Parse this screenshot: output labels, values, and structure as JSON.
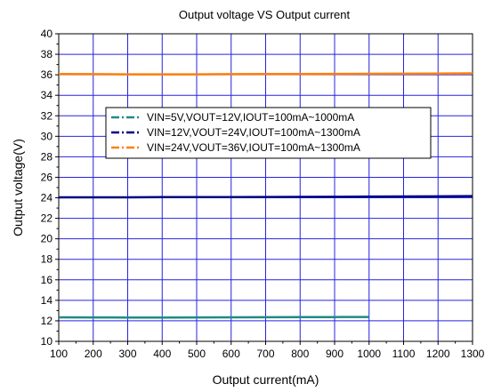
{
  "chart_data": {
    "type": "line",
    "title": "Output voltage VS Output current",
    "xlabel": "Output current(mA)",
    "ylabel": "Output voltage(V)",
    "xlim": [
      100,
      1300
    ],
    "ylim": [
      10,
      40
    ],
    "xticks": [
      100,
      200,
      300,
      400,
      500,
      600,
      700,
      800,
      900,
      1000,
      1100,
      1200,
      1300
    ],
    "yticks": [
      10,
      12,
      14,
      16,
      18,
      20,
      22,
      24,
      26,
      28,
      30,
      32,
      34,
      36,
      38,
      40
    ],
    "grid": true,
    "legend_position": "upper-middle",
    "series": [
      {
        "name": "VIN=5V,VOUT=12V,IOUT=100mA~1000mA",
        "color": "#1f8a8a",
        "dash": "dash-dot",
        "x": [
          100,
          200,
          300,
          400,
          500,
          600,
          700,
          800,
          900,
          1000
        ],
        "y": [
          12.34,
          12.33,
          12.32,
          12.32,
          12.33,
          12.34,
          12.35,
          12.36,
          12.37,
          12.38
        ]
      },
      {
        "name": "VIN=12V,VOUT=24V,IOUT=100mA~1300mA",
        "color": "#000080",
        "dash": "dash-dot",
        "x": [
          100,
          200,
          300,
          400,
          500,
          600,
          700,
          800,
          900,
          1000,
          1100,
          1200,
          1300
        ],
        "y": [
          24.05,
          24.05,
          24.05,
          24.06,
          24.06,
          24.07,
          24.08,
          24.09,
          24.1,
          24.12,
          24.13,
          24.14,
          24.17
        ]
      },
      {
        "name": "VIN=24V,VOUT=36V,IOUT=100mA~1300mA",
        "color": "#ff7f0e",
        "dash": "dash-dot",
        "x": [
          100,
          200,
          300,
          400,
          500,
          600,
          700,
          800,
          900,
          1000,
          1100,
          1200,
          1300
        ],
        "y": [
          36.08,
          36.06,
          36.05,
          36.05,
          36.05,
          36.06,
          36.07,
          36.08,
          36.09,
          36.1,
          36.11,
          36.12,
          36.14
        ]
      }
    ]
  }
}
